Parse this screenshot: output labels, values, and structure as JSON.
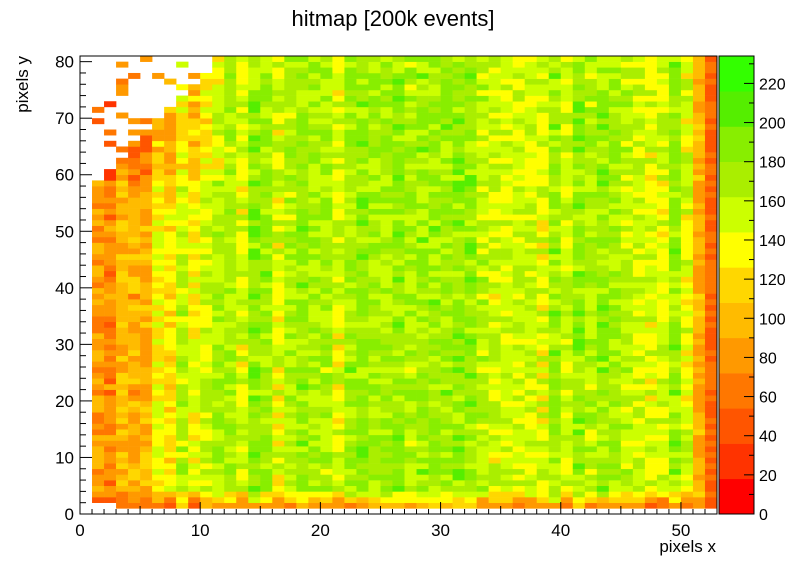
{
  "chart_data": {
    "type": "heatmap",
    "title": "hitmap [200k events]",
    "xlabel": "pixels x",
    "ylabel": "pixels y",
    "xlim": [
      0,
      53
    ],
    "ylim": [
      0,
      81
    ],
    "x_ticks": [
      0,
      10,
      20,
      30,
      40,
      50
    ],
    "y_ticks": [
      0,
      10,
      20,
      30,
      40,
      50,
      60,
      70,
      80
    ],
    "x_tick_labels": [
      "0",
      "10",
      "20",
      "30",
      "40",
      "50"
    ],
    "y_tick_labels": [
      "0",
      "10",
      "20",
      "30",
      "40",
      "50",
      "60",
      "70",
      "80"
    ],
    "n_columns": 52,
    "n_rows": 80,
    "colorbar": {
      "range": [
        0,
        234
      ],
      "ticks": [
        0,
        20,
        40,
        60,
        80,
        100,
        120,
        140,
        160,
        180,
        200,
        220
      ],
      "tick_labels": [
        "0",
        "20",
        "40",
        "60",
        "80",
        "100",
        "120",
        "140",
        "160",
        "180",
        "200",
        "220"
      ],
      "colors": [
        "#ff0000",
        "#ff3300",
        "#ff5500",
        "#ff7700",
        "#ff9900",
        "#ffbb00",
        "#ffd700",
        "#ffff00",
        "#ccff00",
        "#aaee00",
        "#88ee00",
        "#55ee00",
        "#33ff00"
      ]
    },
    "description_values": {
      "center_typical": 170,
      "left_edge_typical": 80,
      "bottom_row_typical": 80,
      "right_edge_column": 40,
      "missing_region": "upper-left corner (x < ~15, y > ~60) largely empty"
    },
    "grid": false
  }
}
